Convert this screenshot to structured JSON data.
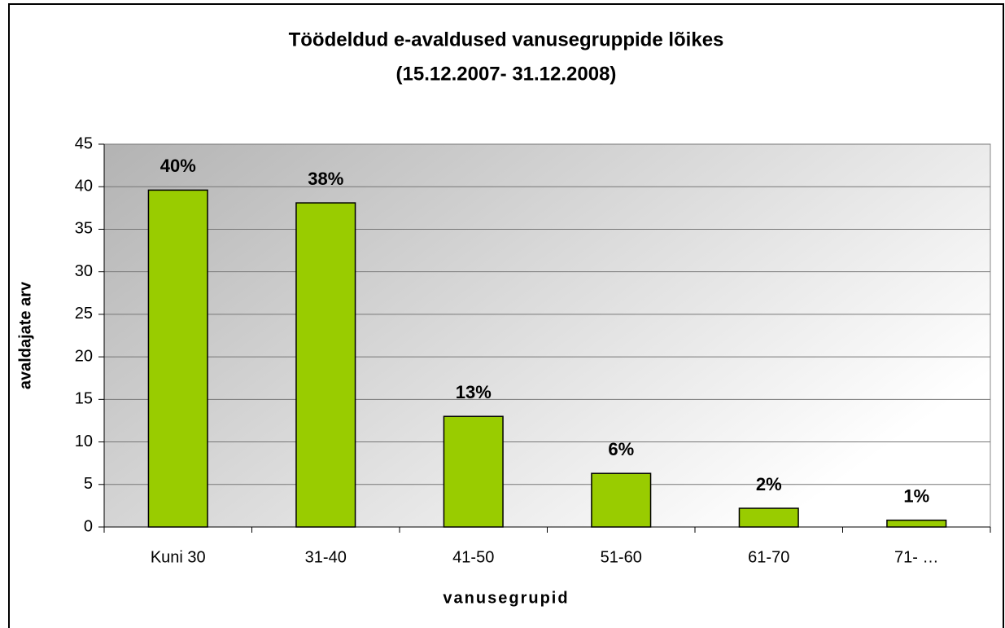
{
  "chart_data": {
    "type": "bar",
    "title": "Töödeldud e-avaldused vanusegruppide lõikes",
    "subtitle": "(15.12.2007- 31.12.2008)",
    "x_label": "vanusegrupid",
    "y_label": "avaldajate arv",
    "categories": [
      "Kuni 30",
      "31-40",
      "41-50",
      "51-60",
      "61-70",
      "71- …"
    ],
    "values": [
      39.6,
      38.1,
      13,
      6.3,
      2.2,
      0.8
    ],
    "value_labels": [
      "40%",
      "38%",
      "13%",
      "6%",
      "2%",
      "1%"
    ],
    "color": "#99cc00",
    "ylim": [
      0,
      45
    ],
    "yticks": [
      0,
      5,
      10,
      15,
      20,
      25,
      30,
      35,
      40,
      45
    ],
    "grid": true
  }
}
